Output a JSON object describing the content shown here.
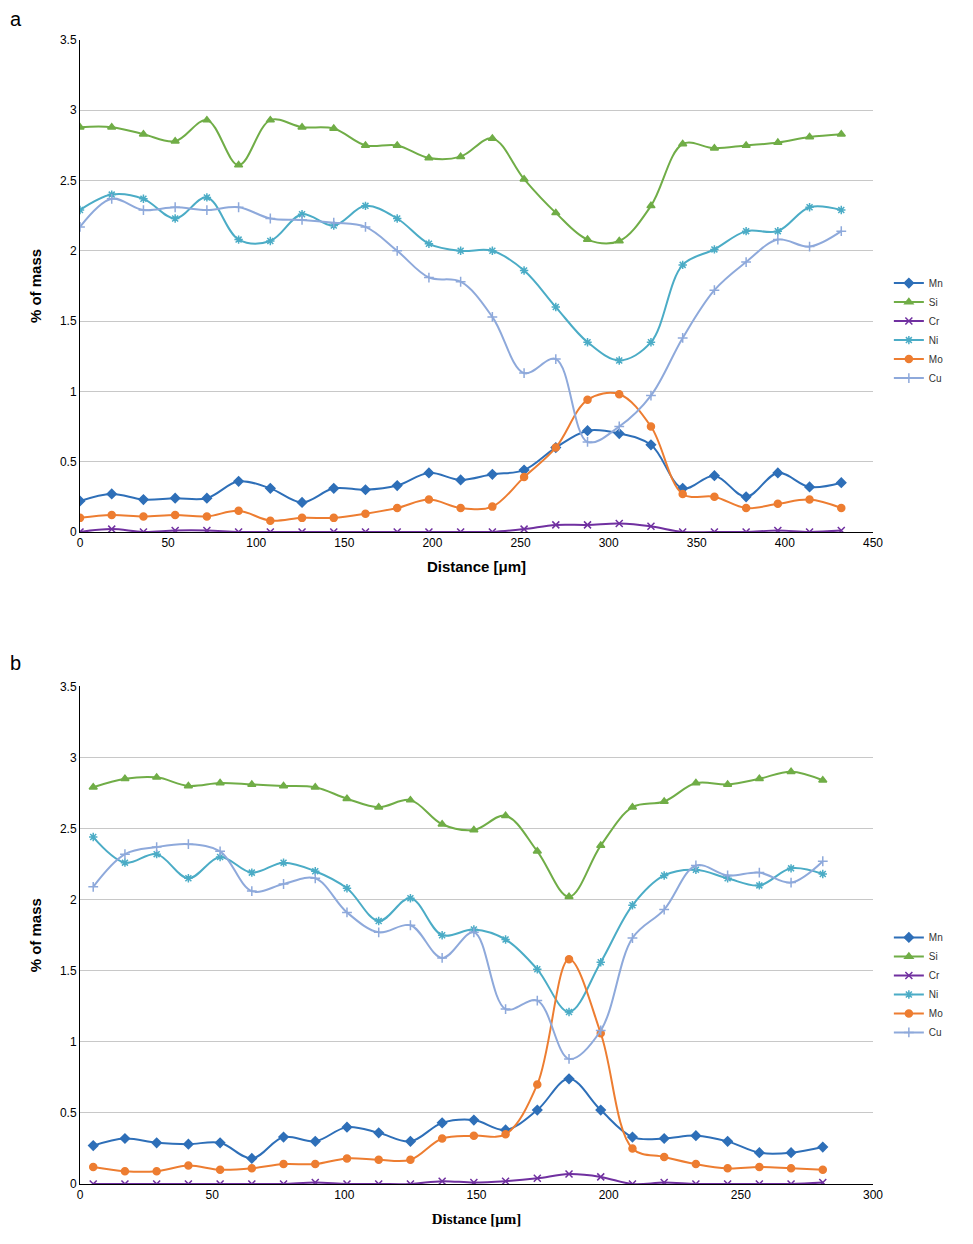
{
  "chart_data": [
    {
      "type": "line",
      "panel_label": "a",
      "x_label": "Distance [μm]",
      "y_label": "% of mass",
      "xlim": [
        0,
        450
      ],
      "xticks": [
        0,
        50,
        100,
        150,
        200,
        250,
        300,
        350,
        400,
        450
      ],
      "ylim": [
        0,
        3.5
      ],
      "yticks": [
        0,
        0.5,
        1,
        1.5,
        2,
        2.5,
        3,
        3.5
      ],
      "grid": true,
      "legend": "right",
      "line_style": "smooth",
      "x": [
        0,
        18,
        36,
        54,
        72,
        90,
        108,
        126,
        144,
        162,
        180,
        198,
        216,
        234,
        252,
        270,
        288,
        306,
        324,
        342,
        360,
        378,
        396,
        414,
        432
      ],
      "series": [
        {
          "name": "Mn",
          "color": "#2e6fb8",
          "marker": "diamond",
          "values": [
            0.22,
            0.27,
            0.23,
            0.24,
            0.24,
            0.36,
            0.31,
            0.21,
            0.31,
            0.3,
            0.33,
            0.42,
            0.37,
            0.41,
            0.44,
            0.6,
            0.72,
            0.7,
            0.62,
            0.31,
            0.4,
            0.25,
            0.42,
            0.32,
            0.35
          ]
        },
        {
          "name": "Si",
          "color": "#70ad47",
          "marker": "triangle-up",
          "values": [
            2.88,
            2.88,
            2.83,
            2.78,
            2.93,
            2.61,
            2.93,
            2.88,
            2.87,
            2.75,
            2.75,
            2.66,
            2.67,
            2.8,
            2.51,
            2.27,
            2.08,
            2.07,
            2.32,
            2.76,
            2.73,
            2.75,
            2.77,
            2.81,
            2.83
          ]
        },
        {
          "name": "Cr",
          "color": "#7030a0",
          "marker": "x",
          "values": [
            0.0,
            0.02,
            0.0,
            0.01,
            0.01,
            0.0,
            0.0,
            0.0,
            0.0,
            0.0,
            0.0,
            0.0,
            0.0,
            0.0,
            0.02,
            0.05,
            0.05,
            0.06,
            0.04,
            0.0,
            0.0,
            0.0,
            0.01,
            0.0,
            0.01
          ]
        },
        {
          "name": "Ni",
          "color": "#4bacc6",
          "marker": "asterisk",
          "values": [
            2.29,
            2.4,
            2.37,
            2.23,
            2.38,
            2.08,
            2.07,
            2.26,
            2.18,
            2.32,
            2.23,
            2.05,
            2.0,
            2.0,
            1.86,
            1.6,
            1.35,
            1.22,
            1.35,
            1.9,
            2.01,
            2.14,
            2.14,
            2.31,
            2.29
          ]
        },
        {
          "name": "Mo",
          "color": "#ed7d31",
          "marker": "circle",
          "values": [
            0.1,
            0.12,
            0.11,
            0.12,
            0.11,
            0.15,
            0.08,
            0.1,
            0.1,
            0.13,
            0.17,
            0.23,
            0.17,
            0.18,
            0.39,
            0.6,
            0.94,
            0.98,
            0.75,
            0.27,
            0.25,
            0.17,
            0.2,
            0.23,
            0.17
          ]
        },
        {
          "name": "Cu",
          "color": "#8ea9db",
          "marker": "cross",
          "values": [
            2.17,
            2.37,
            2.29,
            2.31,
            2.29,
            2.31,
            2.23,
            2.22,
            2.2,
            2.17,
            2.0,
            1.81,
            1.78,
            1.53,
            1.13,
            1.23,
            0.64,
            0.75,
            0.97,
            1.38,
            1.72,
            1.92,
            2.08,
            2.03,
            2.14
          ]
        }
      ]
    },
    {
      "type": "line",
      "panel_label": "b",
      "x_label": "Distance [μm]",
      "y_label": "% of mass",
      "xlim": [
        0,
        300
      ],
      "xticks": [
        0,
        50,
        100,
        150,
        200,
        250,
        300
      ],
      "ylim": [
        0,
        3.5
      ],
      "yticks": [
        0,
        0.5,
        1,
        1.5,
        2,
        2.5,
        3,
        3.5
      ],
      "grid": true,
      "legend": "right",
      "line_style": "smooth",
      "x": [
        5,
        17,
        29,
        41,
        53,
        65,
        77,
        89,
        101,
        113,
        125,
        137,
        149,
        161,
        173,
        185,
        197,
        209,
        221,
        233,
        245,
        257,
        269,
        281
      ],
      "series": [
        {
          "name": "Mn",
          "color": "#2e6fb8",
          "marker": "diamond",
          "values": [
            0.27,
            0.32,
            0.29,
            0.28,
            0.29,
            0.18,
            0.33,
            0.3,
            0.4,
            0.36,
            0.3,
            0.43,
            0.45,
            0.38,
            0.52,
            0.74,
            0.52,
            0.33,
            0.32,
            0.34,
            0.3,
            0.22,
            0.22,
            0.26
          ]
        },
        {
          "name": "Si",
          "color": "#70ad47",
          "marker": "triangle-up",
          "values": [
            2.79,
            2.85,
            2.86,
            2.8,
            2.82,
            2.81,
            2.8,
            2.79,
            2.71,
            2.65,
            2.7,
            2.53,
            2.49,
            2.59,
            2.34,
            2.02,
            2.38,
            2.65,
            2.69,
            2.82,
            2.81,
            2.85,
            2.9,
            2.84
          ]
        },
        {
          "name": "Cr",
          "color": "#7030a0",
          "marker": "x",
          "values": [
            0.0,
            0.0,
            0.0,
            0.0,
            0.0,
            0.0,
            0.0,
            0.01,
            0.0,
            0.0,
            0.0,
            0.02,
            0.01,
            0.02,
            0.04,
            0.07,
            0.05,
            0.0,
            0.01,
            0.0,
            0.0,
            0.0,
            0.0,
            0.01
          ]
        },
        {
          "name": "Ni",
          "color": "#4bacc6",
          "marker": "asterisk",
          "values": [
            2.44,
            2.26,
            2.32,
            2.15,
            2.3,
            2.19,
            2.26,
            2.2,
            2.08,
            1.85,
            2.01,
            1.75,
            1.79,
            1.72,
            1.51,
            1.21,
            1.56,
            1.96,
            2.17,
            2.21,
            2.15,
            2.1,
            2.22,
            2.18
          ]
        },
        {
          "name": "Mo",
          "color": "#ed7d31",
          "marker": "circle",
          "values": [
            0.12,
            0.09,
            0.09,
            0.13,
            0.1,
            0.11,
            0.14,
            0.14,
            0.18,
            0.17,
            0.17,
            0.32,
            0.34,
            0.35,
            0.7,
            1.58,
            1.06,
            0.25,
            0.19,
            0.14,
            0.11,
            0.12,
            0.11,
            0.1
          ]
        },
        {
          "name": "Cu",
          "color": "#8ea9db",
          "marker": "cross",
          "values": [
            2.09,
            2.32,
            2.37,
            2.39,
            2.34,
            2.06,
            2.11,
            2.15,
            1.91,
            1.77,
            1.82,
            1.59,
            1.77,
            1.23,
            1.29,
            0.88,
            1.08,
            1.73,
            1.93,
            2.24,
            2.17,
            2.19,
            2.12,
            2.27
          ]
        }
      ]
    }
  ]
}
